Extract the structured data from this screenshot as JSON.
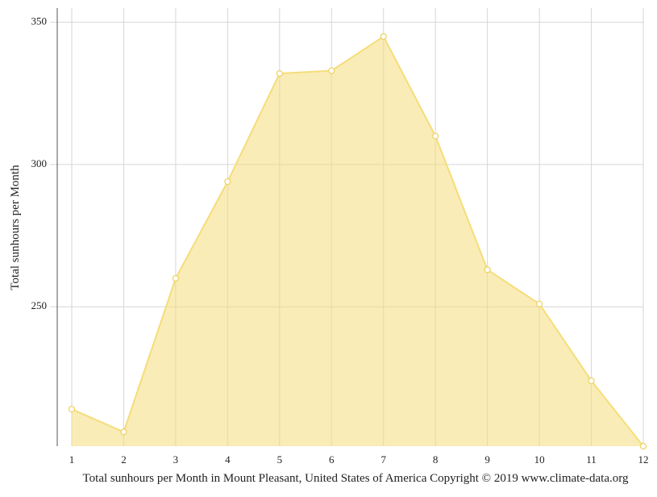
{
  "chart_data": {
    "type": "area",
    "title": "Total sunhours per Month in Mount Pleasant, United States of America Copyright © 2019 www.climate-data.org",
    "y_label": "Total sunhours per Month",
    "x": [
      1,
      2,
      3,
      4,
      5,
      6,
      7,
      8,
      9,
      10,
      11,
      12
    ],
    "xlim": [
      1,
      12
    ],
    "xticks": [
      1,
      2,
      3,
      4,
      5,
      6,
      7,
      8,
      9,
      10,
      11,
      12
    ],
    "series": [
      {
        "name": "Total sunhours per Month",
        "color": "#f5dd7a",
        "values": [
          214,
          206,
          260,
          294,
          332,
          333,
          345,
          310,
          263,
          251,
          224,
          201
        ]
      }
    ],
    "ylim": [
      201,
      355
    ],
    "yticks": [
      250,
      300,
      350
    ],
    "grid": true
  }
}
